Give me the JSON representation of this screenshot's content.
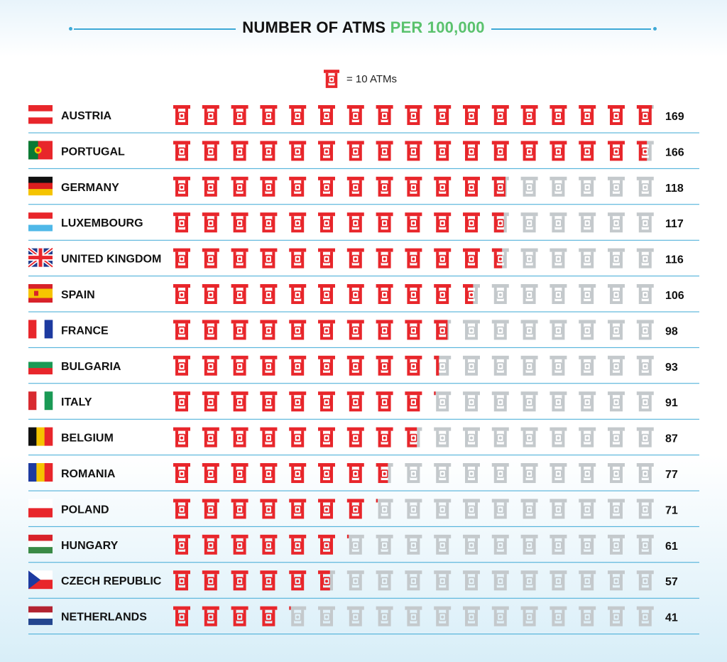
{
  "header": {
    "title_part1": "NUMBER OF ATMS",
    "title_part2": "PER 100,000"
  },
  "legend": {
    "icon": "atm-icon",
    "text": "= 10 ATMs"
  },
  "colors": {
    "filled": "#e8262b",
    "empty": "#c4c9cc",
    "accent_green": "#5ac26d",
    "divider": "#3ea9d6"
  },
  "chart_data": {
    "type": "pictograph",
    "unit": 10,
    "icons_per_row": 17,
    "categories": [
      "AUSTRIA",
      "PORTUGAL",
      "GERMANY",
      "LUXEMBOURG",
      "UNITED KINGDOM",
      "SPAIN",
      "FRANCE",
      "BULGARIA",
      "ITALY",
      "BELGIUM",
      "ROMANIA",
      "POLAND",
      "HUNGARY",
      "CZECH REPUBLIC",
      "NETHERLANDS"
    ],
    "values": [
      169,
      166,
      118,
      117,
      116,
      106,
      98,
      93,
      91,
      87,
      77,
      71,
      61,
      57,
      41
    ],
    "flags": [
      {
        "type": "h",
        "colors": [
          "#e8262b",
          "#ffffff",
          "#e8262b"
        ]
      },
      {
        "type": "pt",
        "colors": [
          "#0a7a34",
          "#e8262b",
          "#f3c200"
        ]
      },
      {
        "type": "h",
        "colors": [
          "#111111",
          "#dd1f1f",
          "#f5c400"
        ]
      },
      {
        "type": "h",
        "colors": [
          "#e8262b",
          "#ffffff",
          "#4fb8e8"
        ]
      },
      {
        "type": "uk",
        "colors": [
          "#1f3b8c",
          "#ffffff",
          "#e8262b"
        ]
      },
      {
        "type": "es",
        "colors": [
          "#d8222a",
          "#f6c400"
        ]
      },
      {
        "type": "v",
        "colors": [
          "#e8262b",
          "#ffffff",
          "#1d3aa0"
        ]
      },
      {
        "type": "h",
        "colors": [
          "#ffffff",
          "#1a9a55",
          "#e8262b"
        ]
      },
      {
        "type": "v",
        "colors": [
          "#d82a30",
          "#ffffff",
          "#1a9a55"
        ]
      },
      {
        "type": "v",
        "colors": [
          "#111111",
          "#f5c400",
          "#e8262b"
        ]
      },
      {
        "type": "v",
        "colors": [
          "#1d3aa0",
          "#f5c400",
          "#e8262b"
        ]
      },
      {
        "type": "h2",
        "colors": [
          "#ffffff",
          "#e8262b"
        ]
      },
      {
        "type": "h",
        "colors": [
          "#d8222a",
          "#ffffff",
          "#3a8a46"
        ]
      },
      {
        "type": "cz",
        "colors": [
          "#ffffff",
          "#e8262b",
          "#1d3aa0"
        ]
      },
      {
        "type": "h",
        "colors": [
          "#b32331",
          "#ffffff",
          "#24468f"
        ]
      }
    ]
  }
}
